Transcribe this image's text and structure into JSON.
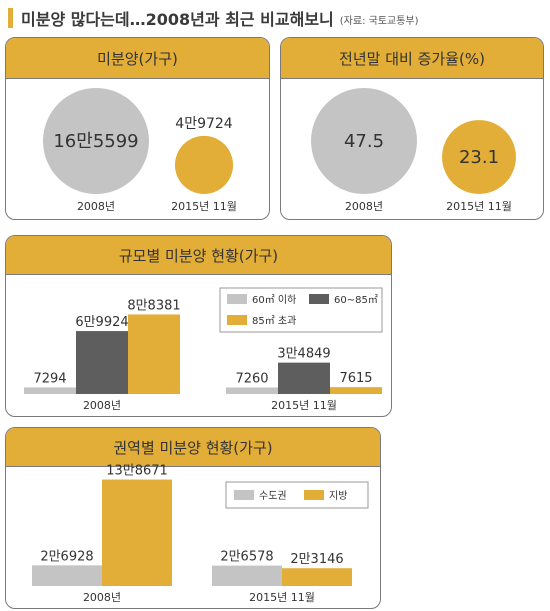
{
  "header": {
    "title": "미분양 많다는데…2008년과 최근 비교해보니",
    "source": "(자료: 국토교통부)"
  },
  "colors": {
    "accent": "#e2ae38",
    "gray_light": "#c4c4c4",
    "gray_dark": "#5e5e5e"
  },
  "chart_data": [
    {
      "type": "bubble",
      "title": "미분양(가구)",
      "categories": [
        "2008년",
        "2015년 11월"
      ],
      "values": [
        165599,
        49724
      ],
      "value_labels": [
        "16만5599",
        "4만9724"
      ],
      "colors": [
        "#c4c4c4",
        "#e2ae38"
      ]
    },
    {
      "type": "bubble",
      "title": "전년말 대비 증가율(%)",
      "categories": [
        "2008년",
        "2015년 11월"
      ],
      "values": [
        47.5,
        23.1
      ],
      "value_labels": [
        "47.5",
        "23.1"
      ],
      "colors": [
        "#c4c4c4",
        "#e2ae38"
      ]
    },
    {
      "type": "bar",
      "title": "규모별 미분양 현황(가구)",
      "categories": [
        "2008년",
        "2015년 11월"
      ],
      "series": [
        {
          "name": "60㎡ 이하",
          "values": [
            7294,
            7260
          ],
          "value_labels": [
            "7294",
            "7260"
          ],
          "color": "#c4c4c4"
        },
        {
          "name": "60~85㎡",
          "values": [
            69924,
            34849
          ],
          "value_labels": [
            "6만9924",
            "3만4849"
          ],
          "color": "#5e5e5e"
        },
        {
          "name": "85㎡ 초과",
          "values": [
            88381,
            7615
          ],
          "value_labels": [
            "8만8381",
            "7615"
          ],
          "color": "#e2ae38"
        }
      ],
      "ylim": [
        0,
        100000
      ],
      "legend": "top-right"
    },
    {
      "type": "bar",
      "title": "권역별 미분양 현황(가구)",
      "categories": [
        "2008년",
        "2015년 11월"
      ],
      "series": [
        {
          "name": "수도권",
          "values": [
            26928,
            26578
          ],
          "value_labels": [
            "2만6928",
            "2만6578"
          ],
          "color": "#c4c4c4"
        },
        {
          "name": "지방",
          "values": [
            138671,
            23146
          ],
          "value_labels": [
            "13만8671",
            "2만3146"
          ],
          "color": "#e2ae38"
        }
      ],
      "ylim": [
        0,
        155000
      ],
      "legend": "top-right"
    }
  ]
}
